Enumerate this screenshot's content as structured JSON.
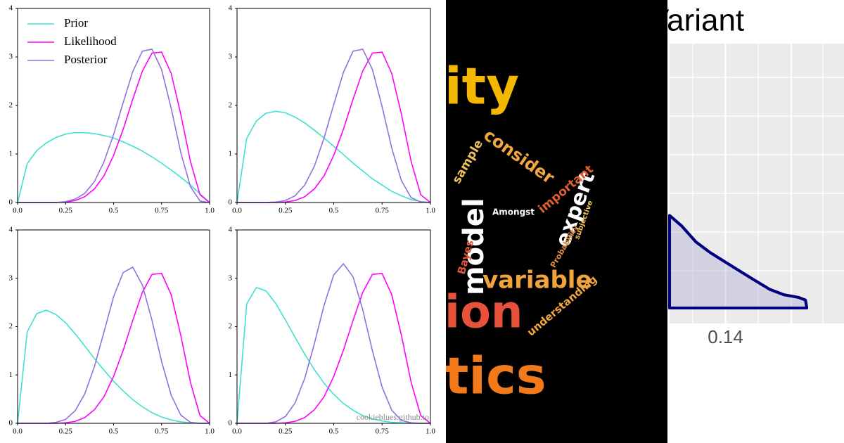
{
  "chart_data": [
    {
      "type": "line",
      "legend": "upper left",
      "x": [
        0,
        0.05,
        0.1,
        0.15,
        0.2,
        0.25,
        0.3,
        0.35,
        0.4,
        0.45,
        0.5,
        0.55,
        0.6,
        0.65,
        0.7,
        0.75,
        0.8,
        0.85,
        0.9,
        0.95,
        1
      ],
      "xlim": [
        0,
        1
      ],
      "ylim": [
        0,
        4
      ],
      "xticks": [
        {
          "value": 0,
          "label": "0.0"
        },
        0.25,
        0.5,
        0.75,
        {
          "value": 1,
          "label": "1.0"
        }
      ],
      "yticks": [
        0,
        1,
        2,
        3,
        4
      ],
      "series": [
        {
          "name": "Prior",
          "color": "#40e0d0",
          "values": [
            0,
            0.8,
            1.07,
            1.23,
            1.34,
            1.41,
            1.44,
            1.44,
            1.42,
            1.38,
            1.33,
            1.25,
            1.16,
            1.06,
            0.94,
            0.81,
            0.67,
            0.52,
            0.36,
            0.18,
            0
          ]
        },
        {
          "name": "Likelihood",
          "color": "#ff00ff",
          "values": [
            0,
            0,
            0,
            0,
            0,
            0.01,
            0.04,
            0.12,
            0.28,
            0.55,
            0.97,
            1.51,
            2.13,
            2.71,
            3.08,
            3.1,
            2.66,
            1.82,
            0.85,
            0.16,
            0
          ]
        },
        {
          "name": "Posterior",
          "color": "#9370db",
          "values": [
            0,
            0,
            0,
            0,
            0,
            0.02,
            0.07,
            0.19,
            0.43,
            0.84,
            1.4,
            2.06,
            2.7,
            3.12,
            3.16,
            2.74,
            1.94,
            1.03,
            0.33,
            0.03,
            0
          ]
        }
      ]
    },
    {
      "type": "line",
      "x": [
        0,
        0.05,
        0.1,
        0.15,
        0.2,
        0.25,
        0.3,
        0.35,
        0.4,
        0.45,
        0.5,
        0.55,
        0.6,
        0.65,
        0.7,
        0.75,
        0.8,
        0.85,
        0.9,
        0.95,
        1
      ],
      "xlim": [
        0,
        1
      ],
      "ylim": [
        0,
        4
      ],
      "xticks": [
        {
          "value": 0,
          "label": "0.0"
        },
        0.25,
        0.5,
        0.75,
        {
          "value": 1,
          "label": "1.0"
        }
      ],
      "yticks": [
        0,
        1,
        2,
        3,
        4
      ],
      "series": [
        {
          "color": "#40e0d0",
          "values": [
            0,
            1.32,
            1.68,
            1.84,
            1.88,
            1.85,
            1.76,
            1.64,
            1.49,
            1.33,
            1.16,
            0.99,
            0.81,
            0.65,
            0.49,
            0.36,
            0.23,
            0.14,
            0.06,
            0.02,
            0
          ]
        },
        {
          "color": "#ff00ff",
          "values": [
            0,
            0,
            0,
            0,
            0,
            0.01,
            0.04,
            0.12,
            0.28,
            0.55,
            0.97,
            1.51,
            2.13,
            2.71,
            3.08,
            3.1,
            2.66,
            1.82,
            0.85,
            0.16,
            0
          ]
        },
        {
          "color": "#9370db",
          "values": [
            0,
            0,
            0,
            0,
            0.01,
            0.04,
            0.14,
            0.36,
            0.75,
            1.33,
            2.02,
            2.68,
            3.12,
            3.16,
            2.74,
            1.98,
            1.12,
            0.45,
            0.1,
            0.01,
            0
          ]
        }
      ]
    },
    {
      "type": "line",
      "x": [
        0,
        0.05,
        0.1,
        0.15,
        0.2,
        0.25,
        0.3,
        0.35,
        0.4,
        0.45,
        0.5,
        0.55,
        0.6,
        0.65,
        0.7,
        0.75,
        0.8,
        0.85,
        0.9,
        0.95,
        1
      ],
      "xlim": [
        0,
        1
      ],
      "ylim": [
        0,
        4
      ],
      "xticks": [
        {
          "value": 0,
          "label": "0.0"
        },
        0.25,
        0.5,
        0.75,
        {
          "value": 1,
          "label": "1.0"
        }
      ],
      "yticks": [
        0,
        1,
        2,
        3,
        4
      ],
      "series": [
        {
          "color": "#40e0d0",
          "values": [
            0,
            1.89,
            2.27,
            2.34,
            2.25,
            2.08,
            1.85,
            1.6,
            1.34,
            1.1,
            0.87,
            0.67,
            0.49,
            0.34,
            0.22,
            0.13,
            0.07,
            0.03,
            0.01,
            0,
            0
          ]
        },
        {
          "color": "#ff00ff",
          "values": [
            0,
            0,
            0,
            0,
            0,
            0.01,
            0.04,
            0.12,
            0.28,
            0.55,
            0.97,
            1.51,
            2.13,
            2.71,
            3.08,
            3.1,
            2.66,
            1.82,
            0.85,
            0.16,
            0
          ]
        },
        {
          "color": "#9370db",
          "values": [
            0,
            0,
            0,
            0,
            0.02,
            0.08,
            0.26,
            0.61,
            1.17,
            1.89,
            2.62,
            3.12,
            3.23,
            2.86,
            2.13,
            1.28,
            0.58,
            0.17,
            0.02,
            0,
            0
          ]
        }
      ]
    },
    {
      "type": "line",
      "annotation": "cookieblues.github.io",
      "x": [
        0,
        0.05,
        0.1,
        0.15,
        0.2,
        0.25,
        0.3,
        0.35,
        0.4,
        0.45,
        0.5,
        0.55,
        0.6,
        0.65,
        0.7,
        0.75,
        0.8,
        0.85,
        0.9,
        0.95,
        1
      ],
      "xlim": [
        0,
        1
      ],
      "ylim": [
        0,
        4
      ],
      "xticks": [
        {
          "value": 0,
          "label": "0.0"
        },
        0.25,
        0.5,
        0.75,
        {
          "value": 1,
          "label": "1.0"
        }
      ],
      "yticks": [
        0,
        1,
        2,
        3,
        4
      ],
      "series": [
        {
          "color": "#40e0d0",
          "values": [
            0,
            2.47,
            2.81,
            2.74,
            2.48,
            2.14,
            1.78,
            1.43,
            1.11,
            0.83,
            0.6,
            0.41,
            0.27,
            0.16,
            0.09,
            0.05,
            0.02,
            0.01,
            0,
            0,
            0
          ]
        },
        {
          "color": "#ff00ff",
          "values": [
            0,
            0,
            0,
            0,
            0,
            0.01,
            0.04,
            0.12,
            0.28,
            0.55,
            0.97,
            1.51,
            2.13,
            2.71,
            3.08,
            3.1,
            2.66,
            1.82,
            0.85,
            0.16,
            0
          ]
        },
        {
          "color": "#9370db",
          "values": [
            0,
            0,
            0,
            0,
            0.03,
            0.14,
            0.42,
            0.93,
            1.65,
            2.44,
            3.07,
            3.3,
            3.03,
            2.35,
            1.5,
            0.75,
            0.27,
            0.06,
            0.01,
            0,
            0
          ]
        }
      ]
    },
    {
      "type": "area",
      "title": "Variant",
      "color": "#000080",
      "x": [
        0.123,
        0.1267,
        0.131,
        0.1353,
        0.1417,
        0.1482,
        0.1535,
        0.1578,
        0.1622,
        0.1643,
        0.1647
      ],
      "values": [
        0.35,
        0.31,
        0.25,
        0.21,
        0.16,
        0.11,
        0.07,
        0.05,
        0.04,
        0.03,
        0
      ],
      "xlim": [
        0.123,
        0.176
      ],
      "ylim": [
        0,
        1
      ],
      "xticks": [
        0.14
      ],
      "grid": true
    }
  ],
  "word_cloud": {
    "words": [
      "ity",
      "ion",
      "tics",
      "variable",
      "model",
      "expert",
      "consider",
      "understanding",
      "important",
      "Amongst",
      "Probability",
      "Bayes",
      "sample",
      "subjective"
    ]
  }
}
